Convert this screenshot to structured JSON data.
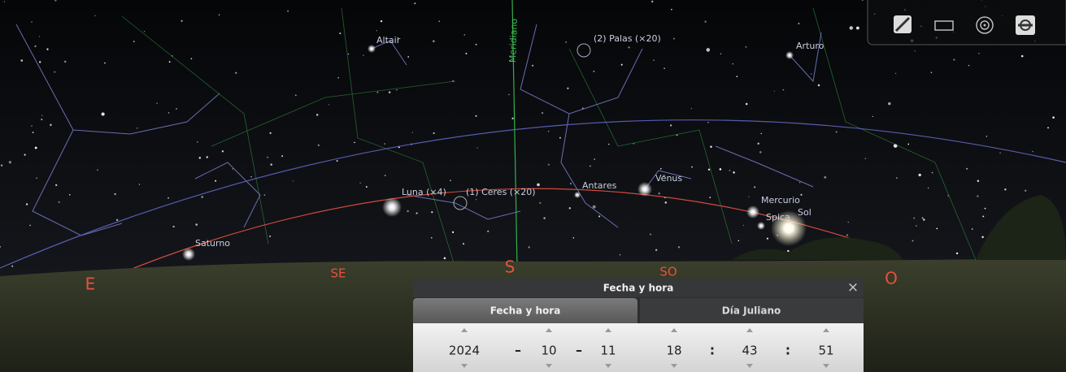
{
  "sky": {
    "meridian_label": "Meridiano",
    "labels": [
      "Altair",
      "(2) Palas (×20)",
      "Arturo",
      "Venus",
      "Antares",
      "Luna (×4)",
      "(1) Ceres (×20)",
      "Mercurio",
      "Spica",
      "Sol",
      "Saturno"
    ],
    "cardinals": [
      "E",
      "SE",
      "S",
      "SO",
      "O"
    ]
  },
  "dialog": {
    "title": "Fecha y hora",
    "close": "×",
    "tabs": [
      "Fecha y hora",
      "Día Juliano"
    ],
    "date": {
      "year": 2024,
      "month": 10,
      "day": 11
    },
    "time": {
      "hour": 18,
      "minute": 43,
      "second": 51
    },
    "date_separator": "–",
    "time_separator": ":"
  }
}
